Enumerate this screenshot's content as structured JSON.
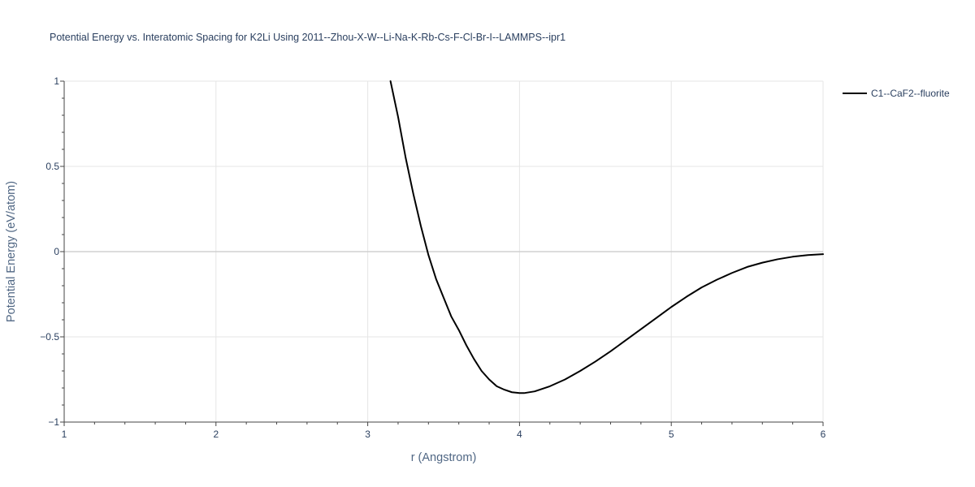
{
  "chart_data": {
    "type": "line",
    "title": "Potential Energy vs. Interatomic Spacing for K2Li Using 2011--Zhou-X-W--Li-Na-K-Rb-Cs-F-Cl-Br-I--LAMMPS--ipr1",
    "xlabel": "r (Angstrom)",
    "ylabel": "Potential Energy (eV/atom)",
    "xlim": [
      1,
      6
    ],
    "ylim": [
      -1,
      1
    ],
    "x_ticks": [
      1,
      2,
      3,
      4,
      5,
      6
    ],
    "x_tick_labels": [
      "1",
      "2",
      "3",
      "4",
      "5",
      "6"
    ],
    "y_ticks": [
      -1,
      -0.5,
      0,
      0.5,
      1
    ],
    "y_tick_labels": [
      "−1",
      "−0.5",
      "0",
      "0.5",
      "1"
    ],
    "grid": true,
    "legend_position": "top-right",
    "colors": {
      "line": "#000000",
      "grid": "#e5e5e5",
      "zero_line": "#d0d0d0",
      "axis": "#444444",
      "text": "#2a3f5f"
    },
    "series": [
      {
        "name": "C1--CaF2--fluorite",
        "x": [
          3.15,
          3.2,
          3.25,
          3.3,
          3.35,
          3.4,
          3.45,
          3.5,
          3.55,
          3.6,
          3.65,
          3.7,
          3.75,
          3.8,
          3.85,
          3.9,
          3.95,
          4.0,
          4.03,
          4.1,
          4.2,
          4.3,
          4.4,
          4.5,
          4.6,
          4.7,
          4.8,
          4.9,
          5.0,
          5.1,
          5.2,
          5.3,
          5.4,
          5.5,
          5.6,
          5.7,
          5.8,
          5.9,
          6.0
        ],
        "y": [
          1.0,
          0.79,
          0.55,
          0.34,
          0.15,
          -0.02,
          -0.16,
          -0.27,
          -0.38,
          -0.46,
          -0.55,
          -0.63,
          -0.7,
          -0.75,
          -0.79,
          -0.81,
          -0.825,
          -0.83,
          -0.83,
          -0.82,
          -0.79,
          -0.75,
          -0.7,
          -0.645,
          -0.585,
          -0.52,
          -0.455,
          -0.39,
          -0.325,
          -0.265,
          -0.21,
          -0.165,
          -0.125,
          -0.09,
          -0.065,
          -0.045,
          -0.03,
          -0.02,
          -0.015
        ]
      }
    ]
  }
}
